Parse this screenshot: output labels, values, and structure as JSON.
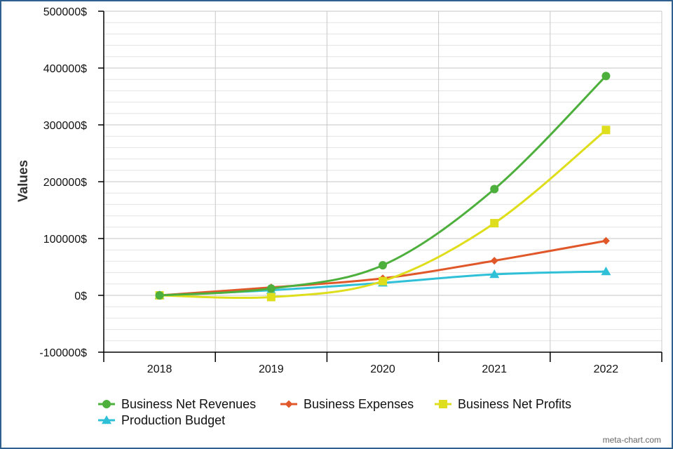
{
  "chart_data": {
    "type": "line",
    "title": "",
    "xlabel": "",
    "ylabel": "Values",
    "categories": [
      "2018",
      "2019",
      "2020",
      "2021",
      "2022"
    ],
    "ylim": [
      -100000,
      500000
    ],
    "y_ticks": [
      -100000,
      0,
      100000,
      200000,
      300000,
      400000,
      500000
    ],
    "y_tick_labels": [
      "-100000$",
      "0$",
      "100000$",
      "200000$",
      "300000$",
      "400000$",
      "500000$"
    ],
    "grid": true,
    "legend_position": "bottom",
    "series": [
      {
        "name": "Business Net Revenues",
        "color": "#4daf3c",
        "marker": "circle",
        "values": [
          0,
          12000,
          53000,
          187000,
          386000
        ]
      },
      {
        "name": "Business Expenses",
        "color": "#e0582a",
        "marker": "diamond",
        "values": [
          0,
          14000,
          30000,
          61000,
          96000
        ]
      },
      {
        "name": "Business Net Profits",
        "color": "#dede1c",
        "marker": "square",
        "values": [
          0,
          -3000,
          25000,
          127000,
          291000
        ]
      },
      {
        "name": "Production Budget",
        "color": "#2fc0d8",
        "marker": "triangle",
        "values": [
          0,
          9000,
          22000,
          37000,
          42000
        ]
      }
    ]
  },
  "credit": "meta-chart.com"
}
